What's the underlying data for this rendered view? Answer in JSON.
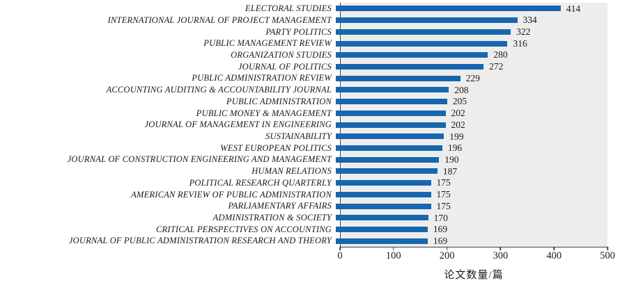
{
  "chart_data": {
    "type": "bar",
    "orientation": "horizontal",
    "title": "",
    "xlabel": "论文数量/篇",
    "ylabel": "",
    "xlim": [
      0,
      500
    ],
    "x_ticks": [
      0,
      100,
      200,
      300,
      400,
      500
    ],
    "grid": "off",
    "legend": "none",
    "value_labels": "shown at bar end",
    "plot_background_color": "#edeeec",
    "bar_color": "#1766b0",
    "axis_color": "#404040",
    "categories": [
      "ELECTORAL STUDIES",
      "INTERNATIONAL JOURNAL OF PROJECT MANAGEMENT",
      "PARTY POLITICS",
      "PUBLIC MANAGEMENT REVIEW",
      "ORGANIZATION STUDIES",
      "JOURNAL OF POLITICS",
      "PUBLIC ADMINISTRATION REVIEW",
      "ACCOUNTING AUDITING & ACCOUNTABILITY JOURNAL",
      "PUBLIC ADMINISTRATION",
      "PUBLIC MONEY & MANAGEMENT",
      "JOURNAL OF MANAGEMENT IN ENGINEERING",
      "SUSTAINABILITY",
      "WEST EUROPEAN POLITICS",
      "JOURNAL OF CONSTRUCTION ENGINEERING AND MANAGEMENT",
      "HUMAN RELATIONS",
      "POLITICAL RESEARCH QUARTERLY",
      "AMERICAN REVIEW OF PUBLIC ADMINISTRATION",
      "PARLIAMENTARY AFFAIRS",
      "ADMINISTRATION & SOCIETY",
      "CRITICAL PERSPECTIVES ON ACCOUNTING",
      "JOURNAL OF PUBLIC ADMINISTRATION RESEARCH AND THEORY"
    ],
    "values": [
      414,
      334,
      322,
      316,
      280,
      272,
      229,
      208,
      205,
      202,
      202,
      199,
      196,
      190,
      187,
      175,
      175,
      175,
      170,
      169,
      169
    ]
  }
}
